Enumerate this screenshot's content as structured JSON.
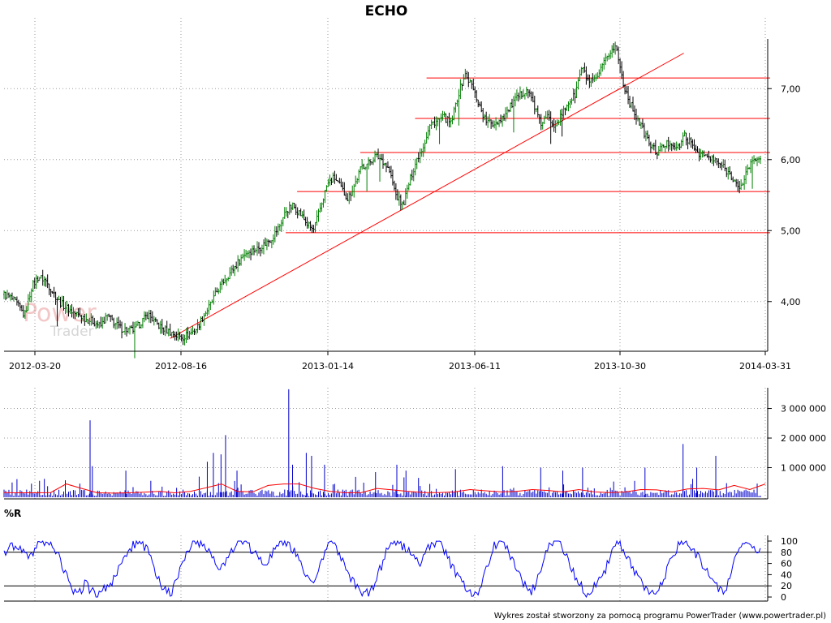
{
  "chart_data": [
    {
      "type": "line",
      "panel": "price",
      "title": "ECHO",
      "x_ticks": [
        "2012-03-20",
        "2012-08-16",
        "2013-01-14",
        "2013-06-11",
        "2013-10-30",
        "2014-03-31"
      ],
      "y_ticks": [
        "4,00",
        "5,00",
        "6,00",
        "7,00"
      ],
      "ylim": [
        3.3,
        7.7
      ],
      "grid": true,
      "series": [
        {
          "values": [
            4.1,
            4.05,
            3.95,
            3.8,
            4.2,
            4.35,
            4.3,
            4.15,
            4.0,
            3.92,
            3.85,
            3.8,
            3.75,
            3.72,
            3.65,
            3.8,
            3.7,
            3.62,
            3.6,
            3.6,
            3.72,
            3.82,
            3.7,
            3.62,
            3.58,
            3.52,
            3.5,
            3.55,
            3.62,
            3.8,
            3.95,
            4.15,
            4.3,
            4.42,
            4.55,
            4.68,
            4.72,
            4.75,
            4.82,
            4.9,
            5.05,
            5.28,
            5.35,
            5.25,
            5.1,
            5.0,
            5.32,
            5.65,
            5.75,
            5.6,
            5.45,
            5.65,
            5.9,
            5.95,
            6.05,
            6.0,
            5.85,
            5.5,
            5.35,
            5.7,
            6.0,
            6.2,
            6.5,
            6.55,
            6.6,
            6.5,
            6.9,
            7.2,
            7.05,
            6.8,
            6.55,
            6.5,
            6.55,
            6.65,
            6.8,
            6.9,
            7.0,
            6.8,
            6.5,
            6.6,
            6.5,
            6.6,
            6.8,
            6.9,
            7.3,
            7.1,
            7.1,
            7.3,
            7.5,
            7.6,
            7.1,
            6.8,
            6.6,
            6.4,
            6.2,
            6.1,
            6.2,
            6.25,
            6.15,
            6.35,
            6.2,
            6.1,
            6.05,
            6.0,
            5.95,
            5.85,
            5.75,
            5.55,
            5.85,
            6.0,
            6.05
          ]
        }
      ],
      "hlines": [
        7.15,
        6.58,
        6.1,
        5.55,
        4.97
      ],
      "trendline": {
        "x": [
          0.218,
          0.893
        ],
        "y": [
          3.48,
          7.5
        ]
      }
    },
    {
      "type": "bar",
      "panel": "volume",
      "y_ticks": [
        "1 000 000",
        "2 000 000",
        "3 000 000"
      ],
      "ylim": [
        0,
        3700000
      ],
      "spikes": [
        [
          0.113,
          2600000
        ],
        [
          0.116,
          1050000
        ],
        [
          0.16,
          900000
        ],
        [
          0.267,
          1200000
        ],
        [
          0.275,
          1500000
        ],
        [
          0.285,
          1450000
        ],
        [
          0.291,
          2100000
        ],
        [
          0.306,
          900000
        ],
        [
          0.374,
          3650000
        ],
        [
          0.379,
          1100000
        ],
        [
          0.397,
          1500000
        ],
        [
          0.404,
          1400000
        ],
        [
          0.421,
          1100000
        ],
        [
          0.488,
          850000
        ],
        [
          0.516,
          1100000
        ],
        [
          0.528,
          900000
        ],
        [
          0.593,
          950000
        ],
        [
          0.655,
          1050000
        ],
        [
          0.705,
          1000000
        ],
        [
          0.734,
          900000
        ],
        [
          0.76,
          1000000
        ],
        [
          0.842,
          1000000
        ],
        [
          0.892,
          1800000
        ],
        [
          0.91,
          1000000
        ],
        [
          0.935,
          1400000
        ]
      ],
      "moving_average": [
        160000,
        150000,
        150000,
        160000,
        450000,
        300000,
        150000,
        140000,
        150000,
        170000,
        200000,
        150000,
        200000,
        320000,
        450000,
        200000,
        180000,
        400000,
        450000,
        450000,
        300000,
        200000,
        150000,
        160000,
        300000,
        250000,
        200000,
        160000,
        160000,
        180000,
        260000,
        220000,
        180000,
        200000,
        260000,
        230000,
        180000,
        260000,
        180000,
        160000,
        180000,
        260000,
        250000,
        180000,
        280000,
        300000,
        250000,
        400000,
        260000,
        450000
      ]
    },
    {
      "type": "line",
      "panel": "oscillator",
      "title": "%R",
      "y_ticks": [
        "0",
        "20",
        "40",
        "60",
        "80",
        "100"
      ],
      "ylim": [
        0,
        100
      ],
      "hlines": [
        20,
        80
      ],
      "values": [
        75,
        90,
        95,
        80,
        70,
        85,
        98,
        100,
        90,
        70,
        40,
        15,
        5,
        25,
        10,
        5,
        20,
        12,
        40,
        60,
        80,
        95,
        100,
        85,
        60,
        30,
        10,
        5,
        40,
        70,
        90,
        100,
        95,
        80,
        60,
        50,
        70,
        90,
        100,
        95,
        85,
        70,
        60,
        75,
        90,
        100,
        95,
        80,
        55,
        40,
        30,
        60,
        90,
        100,
        80,
        55,
        30,
        15,
        5,
        10,
        30,
        60,
        90,
        100,
        95,
        85,
        70,
        60,
        80,
        95,
        100,
        85,
        60,
        40,
        25,
        10,
        5,
        20,
        60,
        90,
        100,
        90,
        65,
        40,
        20,
        10,
        30,
        60,
        95,
        100,
        90,
        70,
        40,
        20,
        5,
        15,
        30,
        50,
        80,
        100,
        85,
        60,
        40,
        25,
        10,
        5,
        25,
        50,
        80,
        95,
        100,
        85,
        70,
        55,
        40,
        20,
        8,
        30,
        70,
        100,
        95,
        85,
        80
      ]
    }
  ],
  "footer_text": "Wykres został stworzony za pomocą programu PowerTrader (www.powertrader.pl)",
  "watermark": {
    "line1": "Power",
    "line2": "Trader"
  },
  "colors": {
    "up": "#008000",
    "down": "#000000",
    "levels": "#ff0000",
    "volume": "#0000cc",
    "volume_ma": "#ff0000",
    "osc": "#0000ff"
  }
}
